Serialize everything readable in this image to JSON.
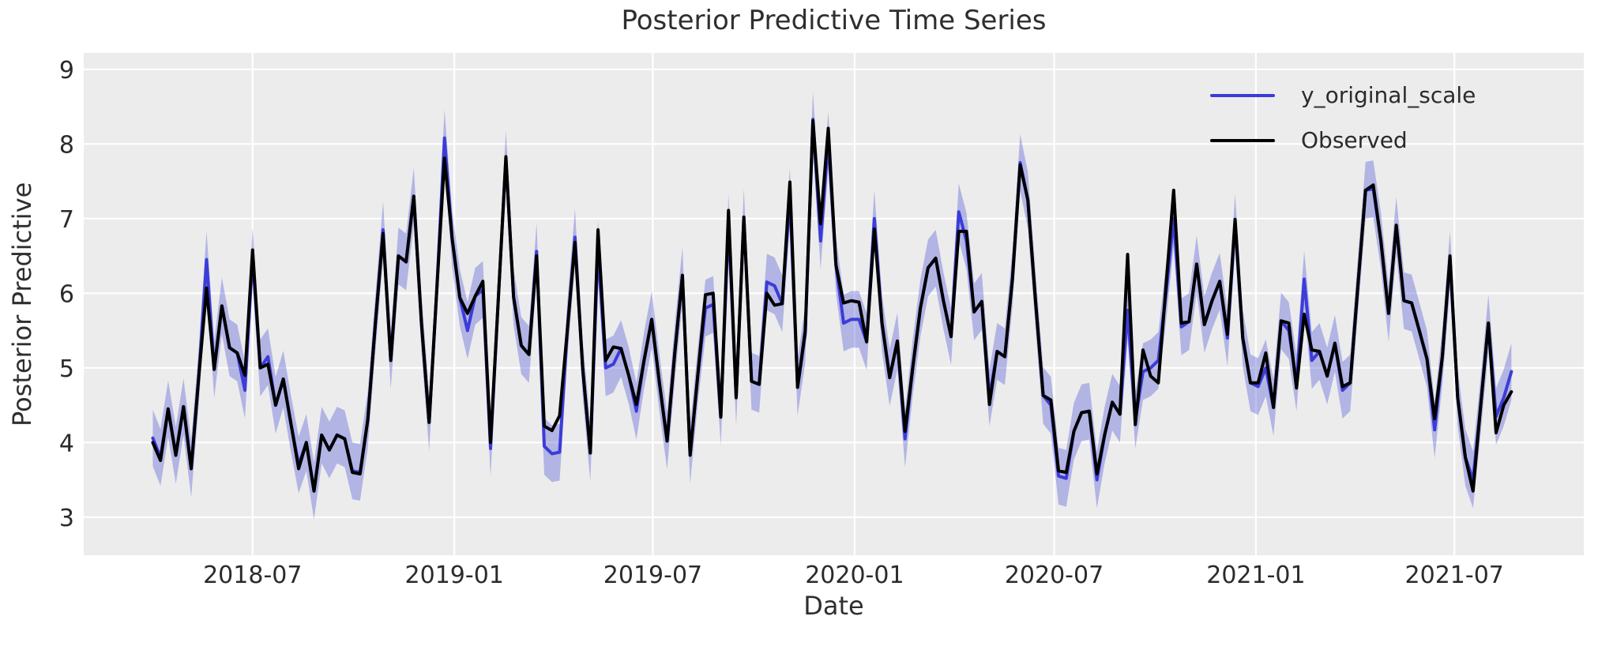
{
  "title": "Posterior Predictive Time Series",
  "axes": {
    "xlabel": "Date",
    "ylabel": "Posterior Predictive"
  },
  "legend": {
    "position": "upper right",
    "items": [
      {
        "label": "y_original_scale",
        "color": "#3c3cd9"
      },
      {
        "label": "Observed",
        "color": "#000000"
      }
    ]
  },
  "colors": {
    "figure_bg": "#ffffff",
    "plot_bg": "#ececec",
    "grid": "#ffffff",
    "tick_text": "#2b2b2b",
    "band": "rgba(85,90,215,0.38)"
  },
  "chart_data": {
    "type": "line",
    "title": "Posterior Predictive Time Series",
    "xlabel": "Date",
    "ylabel": "Posterior Predictive",
    "grid": true,
    "legend_position": "upper right",
    "x_start": "2018-04-01",
    "x_interval_days": 7,
    "n_points": 178,
    "x_tick_labels": [
      "2018-07",
      "2019-01",
      "2019-07",
      "2020-01",
      "2020-07",
      "2021-01",
      "2021-07"
    ],
    "x_tick_dates": [
      "2018-07-01",
      "2019-01-01",
      "2019-07-01",
      "2020-01-01",
      "2020-07-01",
      "2021-01-01",
      "2021-07-01"
    ],
    "y_ticks": [
      3,
      4,
      5,
      6,
      7,
      8,
      9
    ],
    "ylim": [
      2.49,
      9.22
    ],
    "xlim_dates": [
      "2018-01-28",
      "2021-10-27"
    ],
    "band": {
      "around": "y_original_scale",
      "halfwidth": 0.38,
      "color": "rgba(85,90,215,0.38)"
    },
    "series": [
      {
        "name": "y_original_scale",
        "color": "#3c3cd9",
        "linewidth": 4,
        "values": [
          4.06,
          3.8,
          4.45,
          3.83,
          4.48,
          3.65,
          4.9,
          6.45,
          4.98,
          5.83,
          5.27,
          5.2,
          4.7,
          6.5,
          5.0,
          5.15,
          4.5,
          4.85,
          4.25,
          3.7,
          4.0,
          3.35,
          4.1,
          3.9,
          4.1,
          4.05,
          3.62,
          3.6,
          4.3,
          5.6,
          6.85,
          5.1,
          6.5,
          6.42,
          7.3,
          5.6,
          4.27,
          6.05,
          8.08,
          6.73,
          5.94,
          5.5,
          5.96,
          6.05,
          3.92,
          5.9,
          7.8,
          5.95,
          5.3,
          5.18,
          6.56,
          3.95,
          3.85,
          3.87,
          5.5,
          6.75,
          5.0,
          3.86,
          6.6,
          5.0,
          5.05,
          5.26,
          4.9,
          4.42,
          5.1,
          5.65,
          4.8,
          4.02,
          5.2,
          6.24,
          3.83,
          4.9,
          5.8,
          5.85,
          4.34,
          6.95,
          4.6,
          7.02,
          4.82,
          4.78,
          6.15,
          6.1,
          5.86,
          7.3,
          4.74,
          5.45,
          8.33,
          6.7,
          8.05,
          6.38,
          5.6,
          5.65,
          5.65,
          5.35,
          7.0,
          5.6,
          4.87,
          5.36,
          4.05,
          5.0,
          5.8,
          6.34,
          6.47,
          5.9,
          5.42,
          7.09,
          6.7,
          5.75,
          5.89,
          4.6,
          5.22,
          5.15,
          6.2,
          7.75,
          7.25,
          5.9,
          4.63,
          4.5,
          3.55,
          3.52,
          4.15,
          4.4,
          4.42,
          3.5,
          4.1,
          4.54,
          4.38,
          5.77,
          4.3,
          4.95,
          5.0,
          5.1,
          6.0,
          7.0,
          5.55,
          5.62,
          6.39,
          5.58,
          5.9,
          6.16,
          5.4,
          6.95,
          5.4,
          4.8,
          4.75,
          5.0,
          4.47,
          5.63,
          5.5,
          4.8,
          6.19,
          5.1,
          5.22,
          4.89,
          5.33,
          4.7,
          4.8,
          6.1,
          7.38,
          7.4,
          6.7,
          5.73,
          6.91,
          5.9,
          5.87,
          5.5,
          5.12,
          4.17,
          5.15,
          6.45,
          4.6,
          3.8,
          3.5,
          4.5,
          5.6,
          4.35,
          4.6,
          4.95
        ]
      },
      {
        "name": "Observed",
        "color": "#000000",
        "linewidth": 4,
        "values": [
          4.0,
          3.76,
          4.45,
          3.83,
          4.48,
          3.65,
          4.9,
          6.07,
          4.98,
          5.83,
          5.27,
          5.2,
          4.9,
          6.58,
          5.0,
          5.05,
          4.5,
          4.85,
          4.25,
          3.65,
          4.0,
          3.35,
          4.1,
          3.9,
          4.1,
          4.05,
          3.6,
          3.58,
          4.3,
          5.6,
          6.8,
          5.1,
          6.5,
          6.42,
          7.3,
          5.6,
          4.27,
          6.05,
          7.81,
          6.73,
          5.94,
          5.73,
          5.96,
          6.16,
          4.0,
          5.9,
          7.83,
          5.95,
          5.3,
          5.18,
          6.5,
          4.22,
          4.16,
          4.36,
          5.5,
          6.68,
          5.0,
          3.86,
          6.85,
          5.1,
          5.28,
          5.26,
          4.9,
          4.51,
          5.1,
          5.65,
          4.8,
          4.02,
          5.2,
          6.24,
          3.83,
          4.9,
          5.98,
          6.0,
          4.34,
          7.11,
          4.6,
          7.02,
          4.82,
          4.78,
          6.0,
          5.84,
          5.86,
          7.49,
          4.74,
          5.5,
          8.31,
          6.93,
          8.21,
          6.38,
          5.87,
          5.9,
          5.88,
          5.35,
          6.86,
          5.6,
          4.87,
          5.36,
          4.15,
          5.0,
          5.8,
          6.34,
          6.47,
          5.9,
          5.42,
          6.83,
          6.83,
          5.75,
          5.89,
          4.51,
          5.22,
          5.15,
          6.2,
          7.72,
          7.25,
          5.9,
          4.63,
          4.57,
          3.62,
          3.6,
          4.15,
          4.4,
          4.42,
          3.58,
          4.1,
          4.54,
          4.38,
          6.52,
          4.24,
          5.24,
          4.89,
          4.8,
          6.1,
          7.38,
          5.6,
          5.62,
          6.39,
          5.58,
          5.9,
          6.16,
          5.45,
          6.99,
          5.4,
          4.8,
          4.8,
          5.2,
          4.47,
          5.63,
          5.6,
          4.73,
          5.72,
          5.24,
          5.22,
          4.89,
          5.33,
          4.75,
          4.8,
          6.1,
          7.38,
          7.45,
          6.7,
          5.73,
          6.91,
          5.9,
          5.87,
          5.5,
          5.12,
          4.32,
          5.15,
          6.5,
          4.6,
          3.8,
          3.35,
          4.5,
          5.6,
          4.13,
          4.5,
          4.68
        ]
      }
    ]
  }
}
